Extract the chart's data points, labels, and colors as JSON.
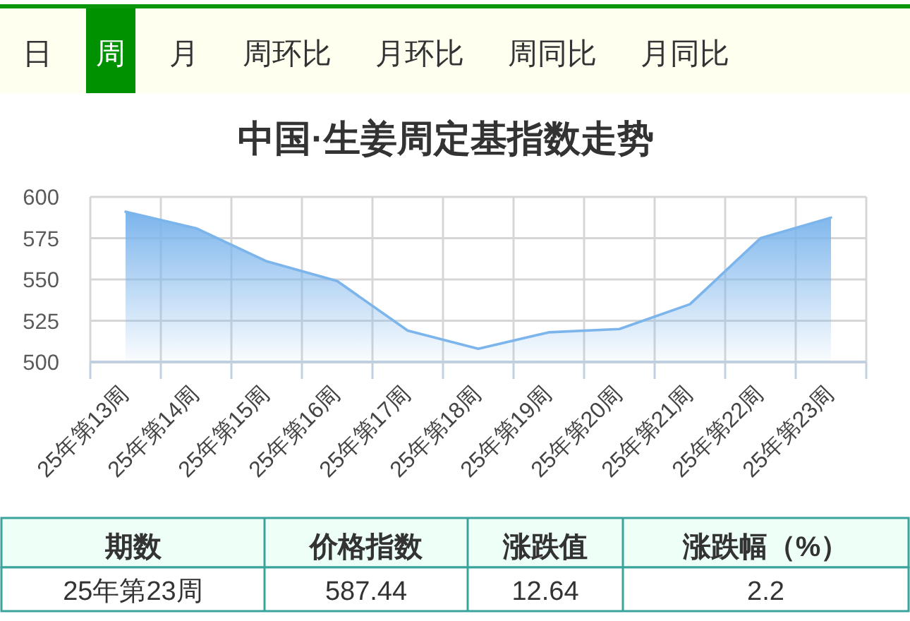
{
  "chart_data": {
    "type": "area",
    "title": "中国·生姜周定基指数走势",
    "categories": [
      "25年第13周",
      "25年第14周",
      "25年第15周",
      "25年第16周",
      "25年第17周",
      "25年第18周",
      "25年第19周",
      "25年第20周",
      "25年第21周",
      "25年第22周",
      "25年第23周"
    ],
    "values": [
      591,
      581,
      561,
      549,
      519,
      508,
      518,
      520,
      535,
      575,
      587.44
    ],
    "color": "#7cb5ec",
    "ylim": [
      500,
      600
    ],
    "yticks": [
      500,
      525,
      550,
      575,
      600
    ],
    "grid": true,
    "annotations": [
      "日",
      "周",
      "月",
      "周环比",
      "月环比",
      "周同比",
      "月同比",
      "期数",
      "价格指数",
      "涨跌值",
      "涨跌幅（%）",
      "25年第23周",
      "587.44",
      "12.64",
      "2.2"
    ]
  }
}
